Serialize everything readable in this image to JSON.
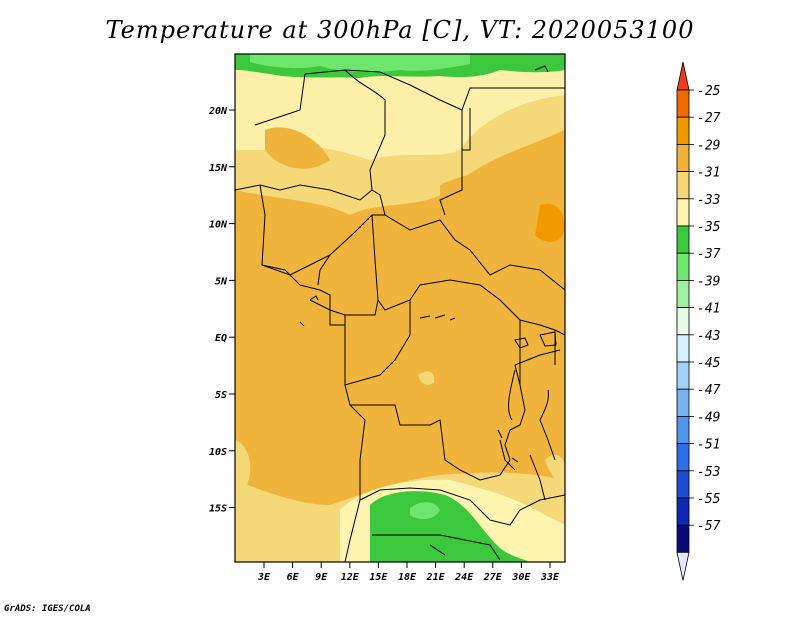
{
  "title": "Temperature at 300hPa [C], VT: 2020053100",
  "credit": "GrADS: IGES/COLA",
  "lat_labels": [
    "20N",
    "15N",
    "10N",
    "5N",
    "EQ",
    "5S",
    "10S",
    "15S"
  ],
  "lon_labels": [
    "3E",
    "6E",
    "9E",
    "12E",
    "15E",
    "18E",
    "21E",
    "24E",
    "27E",
    "30E",
    "33E"
  ],
  "colorbar": {
    "labels": [
      "-25",
      "-27",
      "-29",
      "-31",
      "-33",
      "-35",
      "-37",
      "-39",
      "-41",
      "-43",
      "-45",
      "-47",
      "-49",
      "-51",
      "-53",
      "-55",
      "-57"
    ],
    "colors": [
      "#f03c1e",
      "#f06a00",
      "#f09a00",
      "#f0b43c",
      "#f5d878",
      "#fff5b0",
      "#3cc83c",
      "#6ee66e",
      "#a0f0a0",
      "#e6fae6",
      "#d2f0ff",
      "#a0d2fa",
      "#78b4f0",
      "#5096f0",
      "#2d6ee6",
      "#1e4bd2",
      "#0f28b4",
      "#0a0a78",
      "#e6e6ff"
    ]
  },
  "map": {
    "palette": {
      "warm": "#f0b43c",
      "mid": "#f5d878",
      "cool": "#fff5b0",
      "green": "#3cc83c",
      "lightgreen": "#6ee66e",
      "orange": "#f09a00"
    }
  }
}
